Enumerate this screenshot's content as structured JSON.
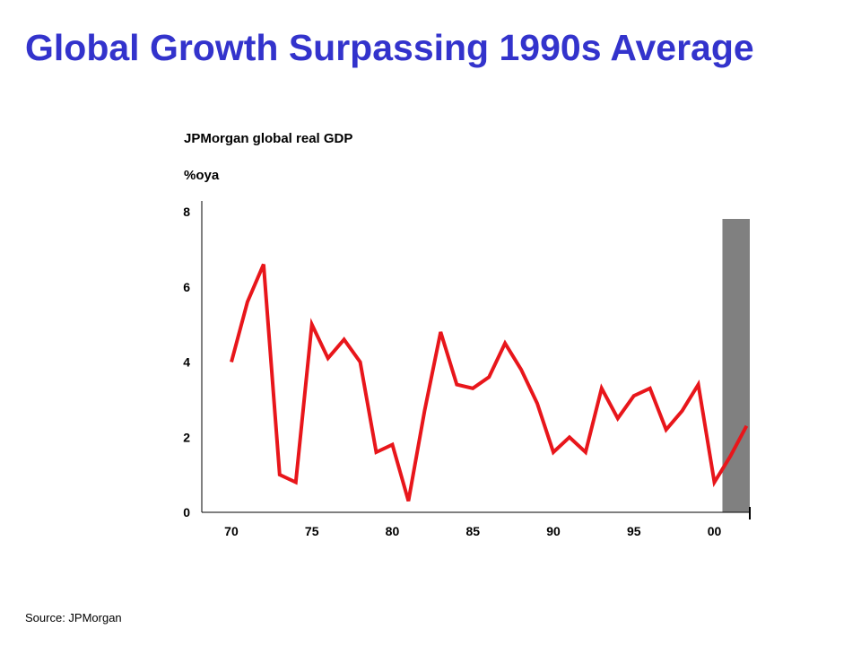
{
  "title": "Global Growth Surpassing 1990s Average",
  "source": "Source:  JPMorgan",
  "chart_data": {
    "type": "line",
    "title": "JPMorgan global real GDP",
    "ylabel": "%oya",
    "xlabel": "",
    "ylim": [
      0,
      8
    ],
    "yticks": [
      0,
      2,
      4,
      6,
      8
    ],
    "xtick_labels": [
      "70",
      "75",
      "80",
      "85",
      "90",
      "95",
      "00"
    ],
    "xtick_years": [
      1970,
      1975,
      1980,
      1985,
      1990,
      1995,
      2000
    ],
    "xlim": [
      1969,
      2002.2
    ],
    "legend": "none",
    "grid": false,
    "line_color": "#e8161b",
    "shade_color": "#808080",
    "shaded_region": {
      "from": 2000.5,
      "to": 2002.2
    },
    "series": [
      {
        "x": [
          1970,
          1971,
          1972,
          1973,
          1974,
          1975,
          1976,
          1977,
          1978,
          1979,
          1980,
          1981,
          1982,
          1983,
          1984,
          1985,
          1986,
          1987,
          1988,
          1989,
          1990,
          1991,
          1992,
          1993,
          1994,
          1995,
          1996,
          1997,
          1998,
          1999,
          2000,
          2001,
          2002
        ],
        "values": [
          4.0,
          5.6,
          6.6,
          1.0,
          0.8,
          5.0,
          4.1,
          4.6,
          4.0,
          1.6,
          1.8,
          0.3,
          2.7,
          4.8,
          3.4,
          3.3,
          3.6,
          4.5,
          3.8,
          2.9,
          1.6,
          2.0,
          1.6,
          3.3,
          2.5,
          3.1,
          3.3,
          2.2,
          2.7,
          3.4,
          0.8,
          1.5,
          2.3
        ]
      }
    ]
  }
}
